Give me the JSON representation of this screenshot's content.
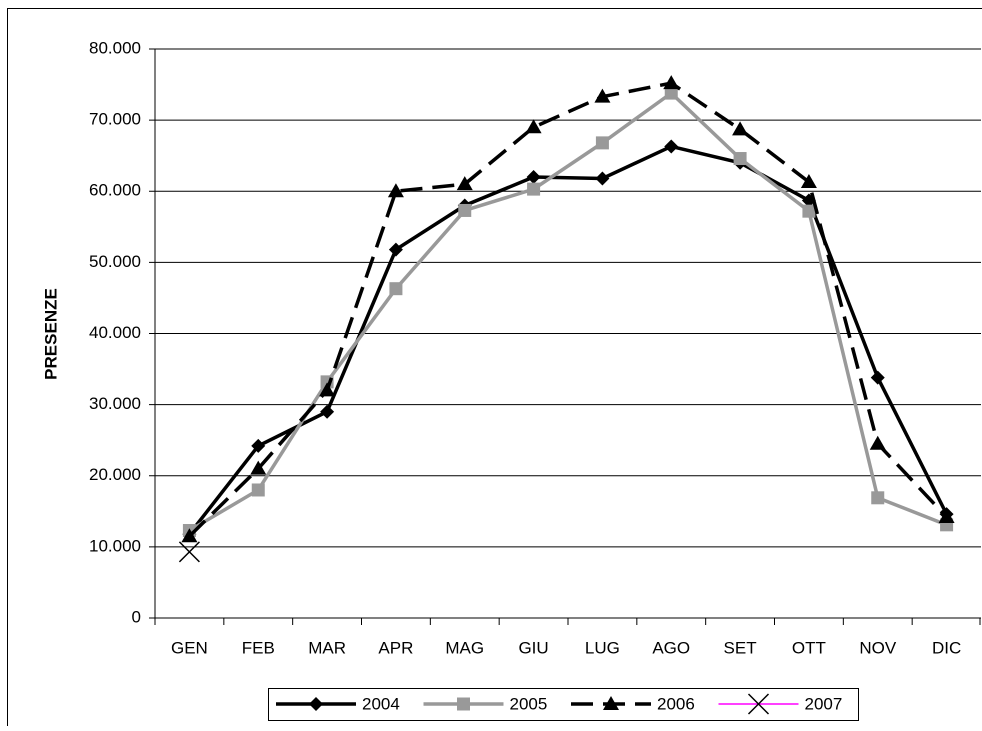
{
  "chart_data": {
    "type": "line",
    "y_label": "PRESENZE",
    "categories": [
      "GEN",
      "FEB",
      "MAR",
      "APR",
      "MAG",
      "GIU",
      "LUG",
      "AGO",
      "SET",
      "OTT",
      "NOV",
      "DIC"
    ],
    "series": [
      {
        "name": "2004",
        "color": "#000000",
        "marker": "diamond",
        "dash": false,
        "values": [
          11800,
          24200,
          29000,
          51800,
          58000,
          62000,
          61800,
          66300,
          64000,
          58700,
          33800,
          14600
        ]
      },
      {
        "name": "2005",
        "color": "#999999",
        "marker": "square",
        "dash": false,
        "values": [
          12300,
          18000,
          33200,
          46300,
          57300,
          60300,
          66800,
          73800,
          64600,
          57200,
          16900,
          13100
        ]
      },
      {
        "name": "2006",
        "color": "#000000",
        "marker": "triangle",
        "dash": true,
        "values": [
          11500,
          21000,
          32000,
          60000,
          61000,
          69000,
          73300,
          75200,
          68700,
          61300,
          24500,
          14200
        ]
      },
      {
        "name": "2007",
        "color": "#ff00ff",
        "marker": "x",
        "dash": false,
        "values": [
          9300,
          null,
          null,
          null,
          null,
          null,
          null,
          null,
          null,
          null,
          null,
          null
        ]
      }
    ],
    "ylim": [
      0,
      80000
    ],
    "yticks": [
      0,
      {
        "value": 10000,
        "label": "10.000"
      },
      {
        "value": 20000,
        "label": "20.000"
      },
      {
        "value": 30000,
        "label": "30.000"
      },
      {
        "value": 40000,
        "label": "40.000"
      },
      {
        "value": 50000,
        "label": "50.000"
      },
      {
        "value": 60000,
        "label": "60.000"
      },
      {
        "value": 70000,
        "label": "70.000"
      },
      {
        "value": 80000,
        "label": "80.000"
      }
    ],
    "grid": true,
    "legend": "bottom"
  }
}
